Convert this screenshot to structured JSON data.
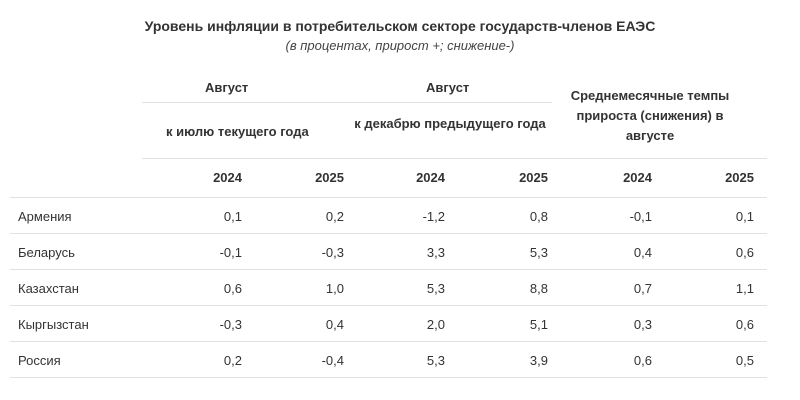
{
  "title": "Уровень инфляции в потребительском секторе государств-членов ЕАЭС",
  "subtitle": "(в процентах, прирост +; снижение-)",
  "groups": {
    "g1": {
      "label": "Август",
      "sublabel": "к июлю текущего года"
    },
    "g2": {
      "label": "Август",
      "sublabel": "к декабрю предыдущего года"
    },
    "g3": {
      "label": "Среднемесячные темпы прироста (снижения) в августе"
    }
  },
  "years": [
    "2024",
    "2025",
    "2024",
    "2025",
    "2024",
    "2025"
  ],
  "rows": [
    {
      "country": "Армения",
      "values": [
        "0,1",
        "0,2",
        "-1,2",
        "0,8",
        "-0,1",
        "0,1"
      ]
    },
    {
      "country": "Беларусь",
      "values": [
        "-0,1",
        "-0,3",
        "3,3",
        "5,3",
        "0,4",
        "0,6"
      ]
    },
    {
      "country": "Казахстан",
      "values": [
        "0,6",
        "1,0",
        "5,3",
        "8,8",
        "0,7",
        "1,1"
      ]
    },
    {
      "country": "Кыргызстан",
      "values": [
        "-0,3",
        "0,4",
        "2,0",
        "5,1",
        "0,3",
        "0,6"
      ]
    },
    {
      "country": "Россия",
      "values": [
        "0,2",
        "-0,4",
        "5,3",
        "3,9",
        "0,6",
        "0,5"
      ]
    }
  ]
}
